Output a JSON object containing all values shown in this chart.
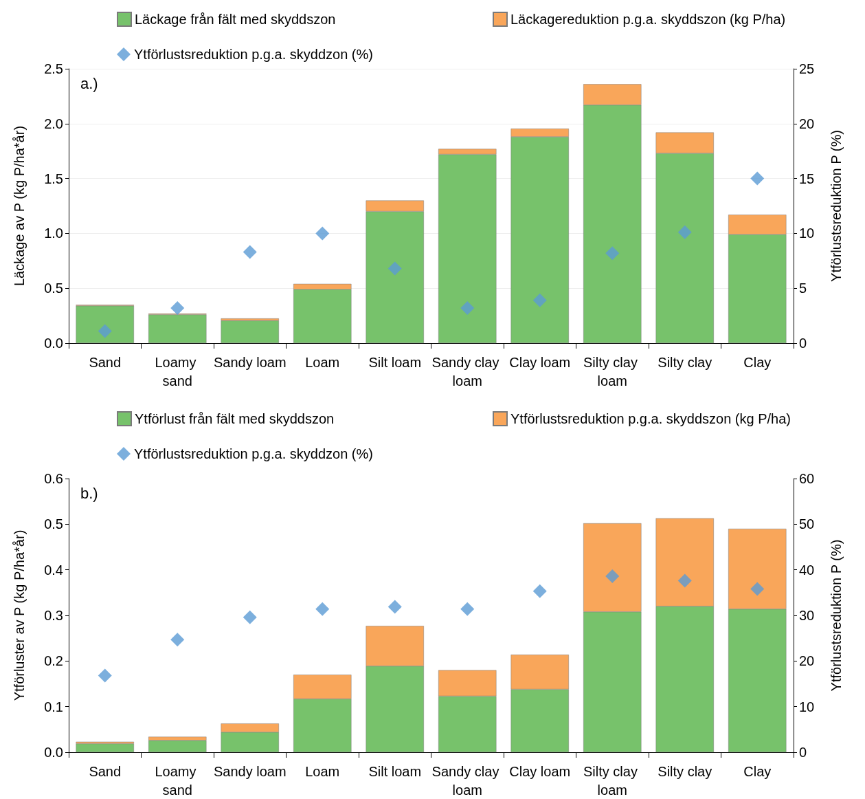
{
  "chart_data": [
    {
      "type": "bar",
      "stacked": true,
      "annotations": [
        "a.)"
      ],
      "ylabel": "Läckage av P (kg P/ha*år)",
      "y2label": "Ytförlustsreduktion P (%)",
      "categories": [
        "Sand",
        "Loamy sand",
        "Sandy loam",
        "Loam",
        "Silt loam",
        "Sandy clay loam",
        "Clay loam",
        "Silty clay loam",
        "Silty clay",
        "Clay"
      ],
      "series": [
        {
          "name": "Läckage från fält med skyddszon",
          "color": "#77c26b",
          "values": [
            0.34,
            0.26,
            0.205,
            0.49,
            1.2,
            1.72,
            1.88,
            2.17,
            1.73,
            0.99
          ]
        },
        {
          "name": "Läckagereduktion p.g.a. skyddszon (kg P/ha)",
          "color": "#f9a65a",
          "values": [
            0.01,
            0.01,
            0.02,
            0.05,
            0.1,
            0.05,
            0.075,
            0.19,
            0.19,
            0.18
          ]
        },
        {
          "name": "Ytförlustsreduktion p.g.a. skyddzon (%)",
          "type": "scatter",
          "axis": "y2",
          "marker": "diamond",
          "color": "#5b9bd5",
          "values": [
            1.1,
            3.2,
            8.3,
            10.0,
            6.8,
            3.2,
            3.9,
            8.2,
            10.1,
            15.0
          ]
        }
      ],
      "ylim": [
        0,
        2.5
      ],
      "yticks": [
        {
          "value": 0,
          "label": "0.0"
        },
        {
          "value": 0.5,
          "label": "0.5"
        },
        {
          "value": 1,
          "label": "1.0"
        },
        {
          "value": 1.5,
          "label": "1.5"
        },
        {
          "value": 2,
          "label": "2.0"
        },
        {
          "value": 2.5,
          "label": "2.5"
        }
      ],
      "y2lim": [
        0,
        25
      ],
      "y2ticks": [
        0,
        5,
        10,
        15,
        20,
        25
      ],
      "grid": "y",
      "legend": "top"
    },
    {
      "type": "bar",
      "stacked": true,
      "annotations": [
        "b.)"
      ],
      "ylabel": "Ytförluster av P (kg P/ha*år)",
      "y2label": "Ytförlustsreduktion P (%)",
      "categories": [
        "Sand",
        "Loamy sand",
        "Sandy loam",
        "Loam",
        "Silt loam",
        "Sandy clay loam",
        "Clay loam",
        "Silty clay loam",
        "Silty clay",
        "Clay"
      ],
      "series": [
        {
          "name": "Ytförlust från fält med skyddszon",
          "color": "#77c26b",
          "values": [
            0.019,
            0.026,
            0.044,
            0.117,
            0.189,
            0.123,
            0.138,
            0.308,
            0.32,
            0.314
          ]
        },
        {
          "name": "Ytförlustsreduktion p.g.a. skyddszon (kg P/ha)",
          "color": "#f9a65a",
          "values": [
            0.004,
            0.008,
            0.019,
            0.053,
            0.088,
            0.057,
            0.076,
            0.194,
            0.193,
            0.176
          ]
        },
        {
          "name": "Ytförlustsreduktion p.g.a. skyddzon (%)",
          "type": "scatter",
          "axis": "y2",
          "marker": "diamond",
          "color": "#5b9bd5",
          "values": [
            16.8,
            24.7,
            29.6,
            31.4,
            31.9,
            31.4,
            35.3,
            38.6,
            37.6,
            35.8
          ]
        }
      ],
      "ylim": [
        0,
        0.6
      ],
      "yticks": [
        {
          "value": 0,
          "label": "0.0"
        },
        {
          "value": 0.1,
          "label": "0.1"
        },
        {
          "value": 0.2,
          "label": "0.2"
        },
        {
          "value": 0.3,
          "label": "0.3"
        },
        {
          "value": 0.4,
          "label": "0.4"
        },
        {
          "value": 0.5,
          "label": "0.5"
        },
        {
          "value": 0.6,
          "label": "0.6"
        }
      ],
      "y2lim": [
        0,
        60
      ],
      "y2ticks": [
        0,
        10,
        20,
        30,
        40,
        50,
        60
      ],
      "grid": false,
      "legend": "top"
    }
  ]
}
